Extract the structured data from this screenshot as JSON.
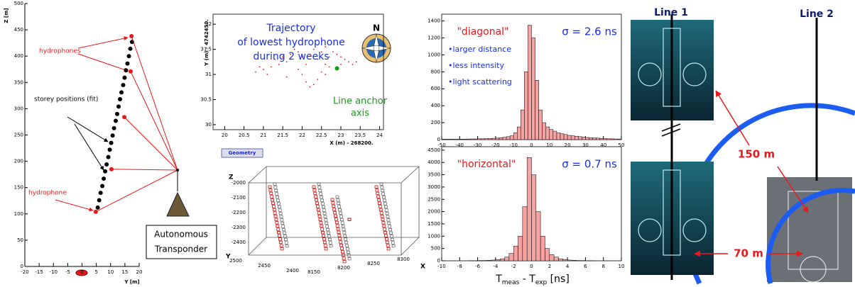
{
  "chart_data": [
    {
      "type": "scatter",
      "xlabel": "Y [m]",
      "ylabel": "Z [m]",
      "xlim": [
        -20,
        20
      ],
      "ylim": [
        0,
        500
      ],
      "xticks": [
        -20,
        -15,
        -10,
        -5,
        0,
        5,
        10,
        15,
        20
      ],
      "yticks": [
        0,
        50,
        100,
        150,
        200,
        250,
        300,
        350,
        400,
        450,
        500
      ],
      "series": [
        {
          "color": "#000000",
          "x": [
            5.5,
            6.0,
            6.5,
            7.1,
            7.6,
            8.1,
            8.6,
            9.2,
            9.7,
            10.2,
            10.7,
            11.2,
            11.8,
            12.3,
            12.8,
            13.3,
            13.8,
            14.4,
            14.9,
            15.4,
            15.9,
            16.4,
            16.9,
            17.5
          ],
          "values": [
            112,
            126,
            140,
            153,
            167,
            181,
            194,
            208,
            222,
            235,
            249,
            263,
            277,
            290,
            304,
            318,
            331,
            345,
            359,
            373,
            386,
            400,
            414,
            427
          ]
        },
        {
          "color": "#e8191c",
          "x": [
            4.8,
            10.3,
            14.8,
            17.0,
            17.3
          ],
          "values": [
            104,
            185,
            284,
            371,
            438
          ]
        }
      ],
      "annotations": [
        "hydrophones",
        "storey positions (fit)",
        "hydrophone"
      ],
      "transponder_label": [
        "Autonomous",
        "Transponder"
      ]
    },
    {
      "type": "scatter",
      "xlabel": "X (m) - 268200.",
      "ylabel": "Y (m) - 4742450.",
      "title": [
        "Trajectory",
        "of lowest hydrophone",
        "during 2 weeks"
      ],
      "xlim": [
        19.7,
        24.1
      ],
      "ylim": [
        29.9,
        32.2
      ],
      "xticks": [
        20,
        20.5,
        21,
        21.5,
        22,
        22.5,
        23,
        23.5,
        24
      ],
      "yticks": [
        30,
        30.5,
        31,
        31.5,
        32
      ],
      "series": [
        {
          "color": "#e8191c",
          "x": [
            20.8,
            21.0,
            21.2,
            21.3,
            21.5,
            21.6,
            21.7,
            21.8,
            21.9,
            22.0,
            22.1,
            22.0,
            22.1,
            22.2,
            22.3,
            22.4,
            22.5,
            22.6,
            22.7,
            22.8,
            22.9,
            23.0,
            23.1,
            23.2,
            23.3,
            22.5,
            22.3,
            22.6,
            21.4,
            21.1,
            20.9,
            22.4,
            22.7,
            23.0,
            21.9,
            22.2,
            21.6,
            22.6,
            23.4,
            21.3
          ],
          "values": [
            31.05,
            31.1,
            31.15,
            31.3,
            31.35,
            31.25,
            31.4,
            31.5,
            31.45,
            31.35,
            31.2,
            31.0,
            30.85,
            30.75,
            30.8,
            30.9,
            31.05,
            31.2,
            31.35,
            31.45,
            31.4,
            31.35,
            31.3,
            31.25,
            31.2,
            31.45,
            31.5,
            31.55,
            31.2,
            31.0,
            31.15,
            31.3,
            31.15,
            31.2,
            31.1,
            31.4,
            30.95,
            31.0,
            31.25,
            31.7
          ]
        },
        {
          "color": "#1a9a1a",
          "x": [
            22.9
          ],
          "values": [
            31.12
          ]
        }
      ],
      "annotation": [
        "Line anchor",
        "axis"
      ],
      "compass": "N"
    },
    {
      "type": "histogram",
      "color": "#f4a3a3",
      "label": "\"diagonal\"",
      "sigma": "σ = 2.6 ns",
      "bullets": [
        "•larger distance",
        "•less intensity",
        "•light scattering"
      ],
      "xlim": [
        -50,
        50
      ],
      "ylim": [
        0,
        1480
      ],
      "xticks": [
        -50,
        -40,
        -30,
        -20,
        -10,
        0,
        10,
        20,
        30,
        40,
        50
      ],
      "yticks": [
        0,
        200,
        400,
        600,
        800,
        1000,
        1200,
        1400
      ],
      "bins": [
        -50,
        -48,
        -46,
        -44,
        -42,
        -40,
        -38,
        -36,
        -34,
        -32,
        -30,
        -28,
        -26,
        -24,
        -22,
        -20,
        -18,
        -16,
        -14,
        -12,
        -10,
        -8,
        -6,
        -4,
        -2,
        0,
        2,
        4,
        6,
        8,
        10,
        12,
        14,
        16,
        18,
        20,
        22,
        24,
        26,
        28,
        30,
        32,
        34,
        36,
        38,
        40,
        42,
        44,
        46,
        48,
        50
      ],
      "values": [
        5,
        5,
        5,
        5,
        5,
        6,
        6,
        7,
        8,
        8,
        10,
        10,
        12,
        14,
        16,
        18,
        22,
        28,
        35,
        45,
        80,
        150,
        350,
        800,
        1350,
        1200,
        700,
        350,
        200,
        150,
        120,
        100,
        80,
        70,
        60,
        50,
        45,
        40,
        35,
        30,
        25,
        22,
        20,
        18,
        15,
        12,
        10,
        9,
        8,
        7
      ]
    },
    {
      "type": "histogram",
      "color": "#f4a3a3",
      "label": "\"horizontal\"",
      "sigma": "σ = 0.7 ns",
      "xlabel": [
        "T",
        "meas",
        " - T",
        "exp",
        " [ns]"
      ],
      "xlim": [
        -10,
        10
      ],
      "ylim": [
        0,
        4640
      ],
      "xticks": [
        -10,
        -8,
        -6,
        -4,
        -2,
        0,
        2,
        4,
        6,
        8,
        10
      ],
      "yticks": [
        0,
        500,
        1000,
        1500,
        2000,
        2500,
        3000,
        3500,
        4000,
        4500
      ],
      "bins": [
        -10,
        -9.5,
        -9,
        -8.5,
        -8,
        -7.5,
        -7,
        -6.5,
        -6,
        -5.5,
        -5,
        -4.5,
        -4,
        -3.5,
        -3,
        -2.5,
        -2,
        -1.5,
        -1,
        -0.5,
        0,
        0.5,
        1,
        1.5,
        2,
        2.5,
        3,
        3.5,
        4,
        4.5,
        5,
        5.5,
        6,
        6.5,
        7,
        7.5,
        8,
        8.5,
        9,
        9.5,
        10
      ],
      "values": [
        0,
        0,
        0,
        0,
        0,
        0,
        5,
        5,
        10,
        10,
        20,
        30,
        50,
        80,
        150,
        300,
        600,
        1000,
        2200,
        4200,
        3500,
        2000,
        1000,
        500,
        250,
        150,
        80,
        50,
        30,
        20,
        10,
        10,
        5,
        5,
        0,
        0,
        0,
        0,
        0,
        0
      ]
    }
  ],
  "geometry": {
    "button": "Geometry",
    "z": "Z",
    "y": "Y",
    "x": "X",
    "zticks": [
      -2000,
      -2100,
      -2200,
      -2300,
      -2400
    ],
    "yticks": [
      2500,
      2450,
      2400
    ],
    "xticks": [
      8150,
      8200,
      8250,
      8300
    ]
  },
  "photos": {
    "line1": "Line 1",
    "line2": "Line 2",
    "dist1": "150 m",
    "dist2": "70 m"
  }
}
